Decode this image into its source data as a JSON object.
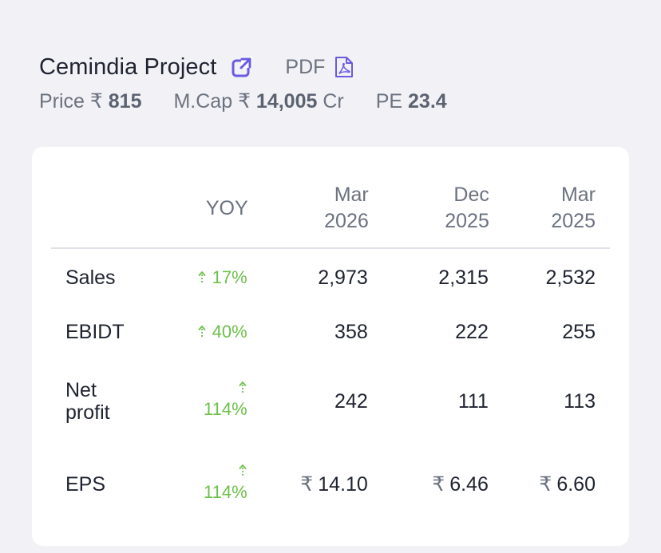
{
  "header": {
    "company_name": "Cemindia Project",
    "pdf_label": "PDF",
    "metrics": [
      {
        "label": "Price ₹ ",
        "value": "815",
        "suffix": ""
      },
      {
        "label": "M.Cap ₹ ",
        "value": "14,005",
        "suffix": " Cr"
      },
      {
        "label": "PE ",
        "value": "23.4",
        "suffix": ""
      }
    ]
  },
  "colors": {
    "accent": "#6a5be2",
    "positive": "#6cc04a",
    "text_primary": "#1f2330",
    "text_muted": "#6b7280",
    "card_bg": "#ffffff",
    "page_bg": "#f2f2f6"
  },
  "icons": {
    "external_link": "external-link-icon",
    "pdf": "pdf-file-icon",
    "up_arrow": "up-arrow-icon"
  },
  "table": {
    "headers": [
      "",
      "YOY",
      "Mar 2026",
      "Dec 2025",
      "Mar 2025"
    ],
    "header_lines": [
      [
        ""
      ],
      [
        "YOY"
      ],
      [
        "Mar",
        "2026"
      ],
      [
        "Dec",
        "2025"
      ],
      [
        "Mar",
        "2025"
      ]
    ],
    "rows": [
      {
        "label": "Sales",
        "yoy": "17%",
        "values": [
          "2,973",
          "2,315",
          "2,532"
        ],
        "currency": false
      },
      {
        "label": "EBIDT",
        "yoy": "40%",
        "values": [
          "358",
          "222",
          "255"
        ],
        "currency": false
      },
      {
        "label": "Net profit",
        "label_lines": [
          "Net",
          "profit"
        ],
        "yoy": "114%",
        "values": [
          "242",
          "111",
          "113"
        ],
        "currency": false
      },
      {
        "label": "EPS",
        "yoy": "114%",
        "values": [
          "14.10",
          "6.46",
          "6.60"
        ],
        "currency": true,
        "currency_symbol": "₹"
      }
    ]
  }
}
